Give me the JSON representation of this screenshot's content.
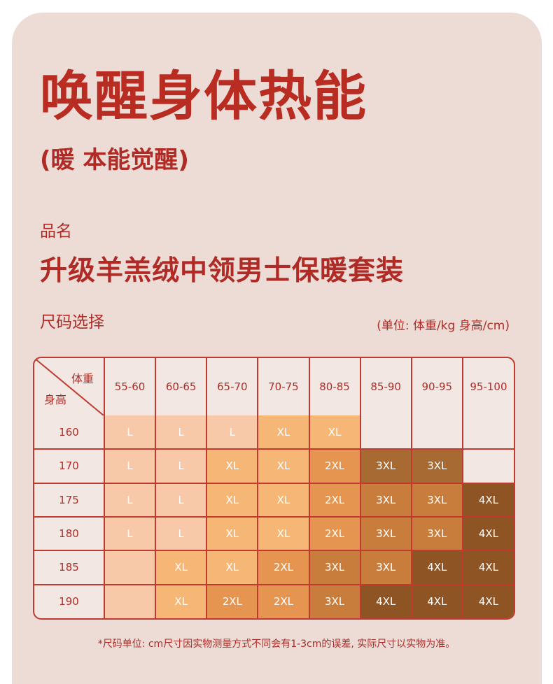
{
  "title": "唤醒身体热能",
  "subtitle": "(暖 本能觉醒)",
  "product_label": "品名",
  "product_name": "升级羊羔绒中领男士保暖套装",
  "size_label": "尺码选择",
  "unit_note": "(单位: 体重/kg 身高/cm)",
  "table": {
    "corner_weight": "体重",
    "corner_height": "身高",
    "weights": [
      "55-60",
      "60-65",
      "65-70",
      "70-75",
      "80-85",
      "85-90",
      "90-95",
      "95-100"
    ],
    "rows": [
      {
        "height": "160",
        "sizes": [
          "L",
          "L",
          "L",
          "XL",
          "XL",
          "",
          "",
          ""
        ]
      },
      {
        "height": "170",
        "sizes": [
          "L",
          "L",
          "XL",
          "XL",
          "2XL",
          "3XL",
          "3XL",
          ""
        ]
      },
      {
        "height": "175",
        "sizes": [
          "L",
          "L",
          "XL",
          "XL",
          "2XL",
          "3XL",
          "3XL",
          "4XL"
        ]
      },
      {
        "height": "180",
        "sizes": [
          "L",
          "L",
          "XL",
          "XL",
          "2XL",
          "3XL",
          "3XL",
          "4XL"
        ]
      },
      {
        "height": "185",
        "sizes": [
          "",
          "XL",
          "XL",
          "2XL",
          "3XL",
          "3XL",
          "4XL",
          "4XL"
        ]
      },
      {
        "height": "190",
        "sizes": [
          "",
          "XL",
          "2XL",
          "2XL",
          "3XL",
          "4XL",
          "4XL",
          "4XL"
        ]
      }
    ],
    "shades": [
      [
        1,
        1,
        1,
        2,
        2,
        0,
        0,
        0
      ],
      [
        1,
        1,
        2,
        2,
        3,
        5,
        5,
        0
      ],
      [
        1,
        1,
        2,
        2,
        3,
        4,
        4,
        6
      ],
      [
        1,
        1,
        2,
        2,
        3,
        4,
        4,
        6
      ],
      [
        1,
        2,
        2,
        3,
        4,
        4,
        6,
        6
      ],
      [
        1,
        2,
        3,
        3,
        4,
        6,
        6,
        6
      ]
    ]
  },
  "footnote": "*尺码单位: cm尺寸因实物测量方式不同会有1-3cm的误差, 实际尺寸以实物为准。"
}
